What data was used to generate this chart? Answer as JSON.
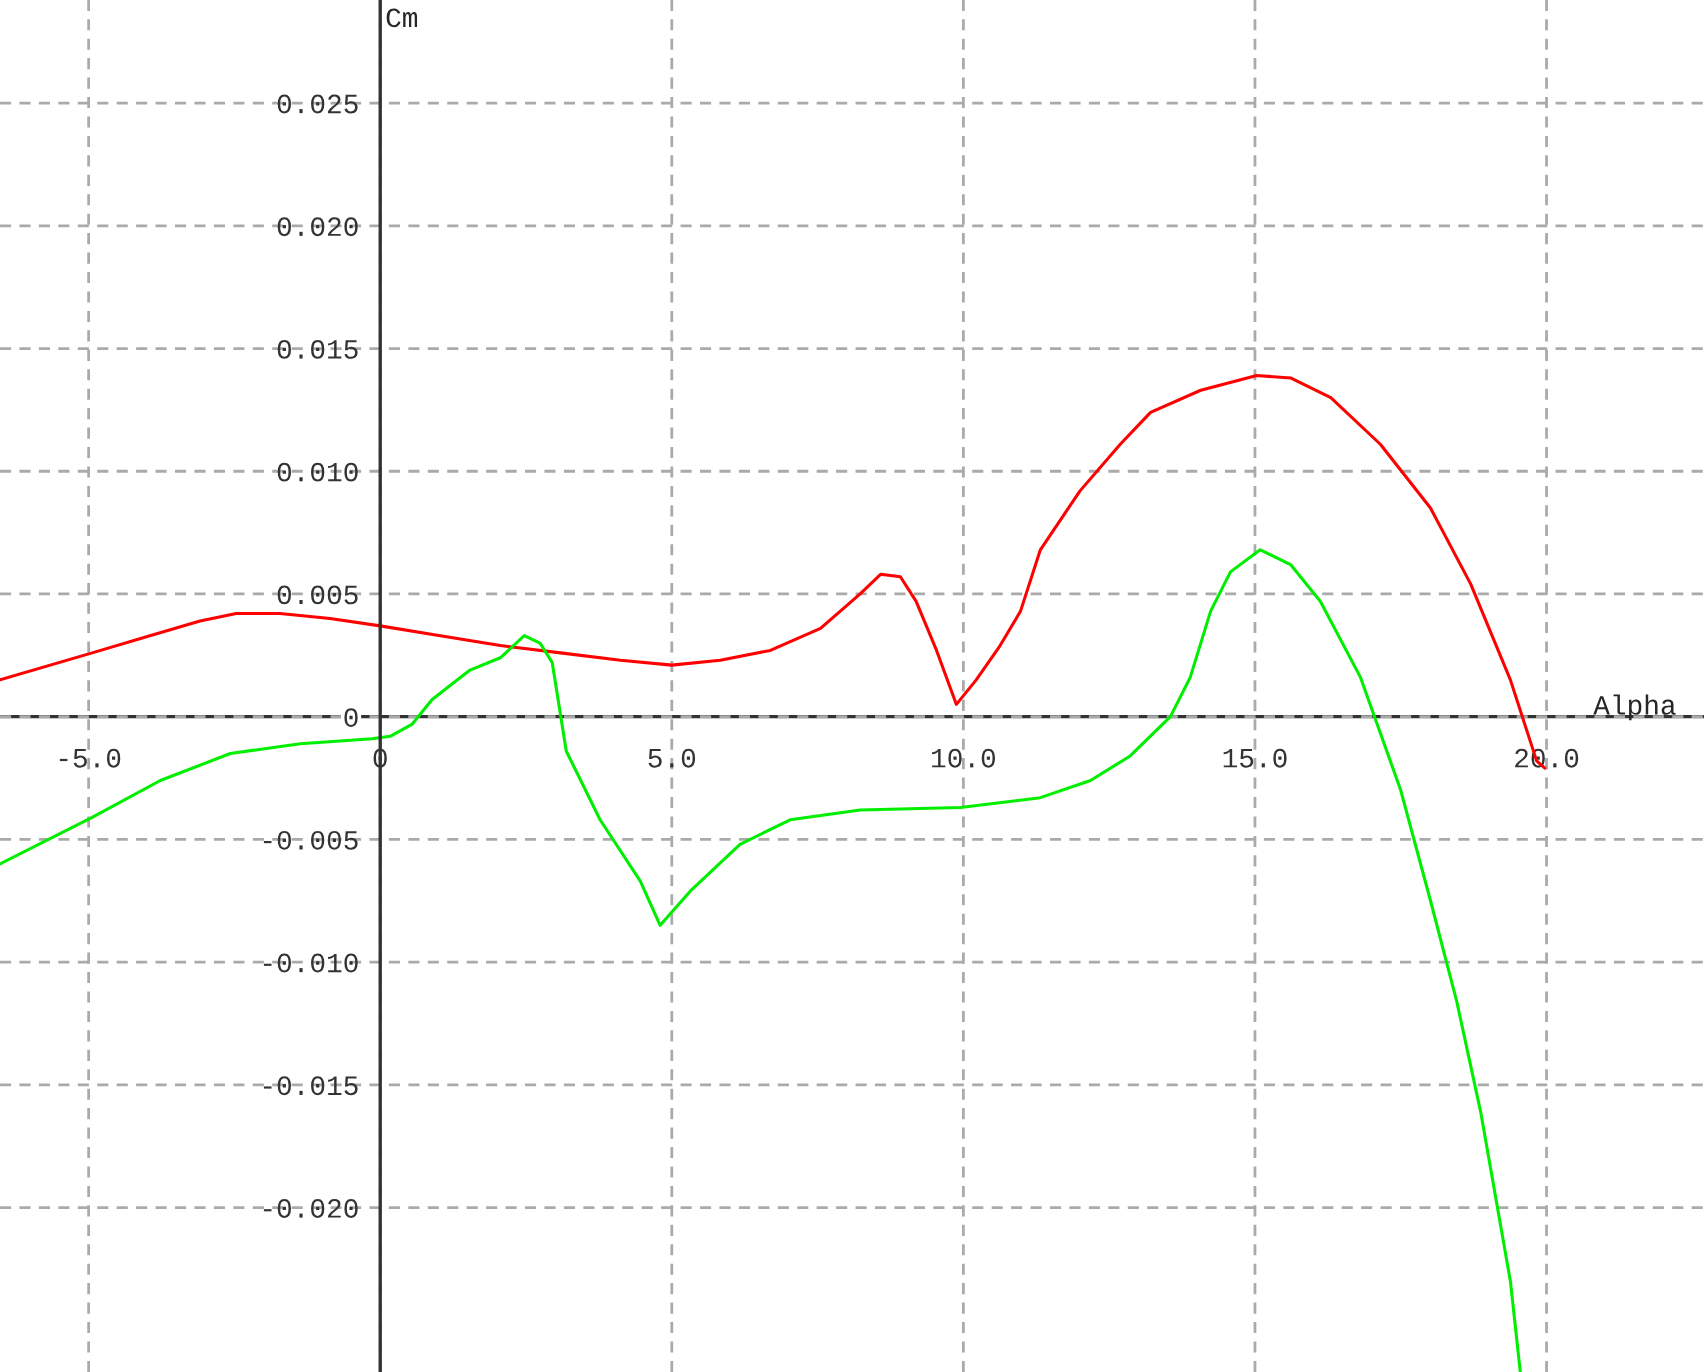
{
  "chart_data": {
    "type": "line",
    "xlabel": "Alpha",
    "ylabel": "Cm",
    "grid": true,
    "legend": false,
    "marker": "none",
    "line_style": "solid",
    "xlim": [
      -6.52,
      22.7
    ],
    "ylim": [
      -0.0267,
      0.0292
    ],
    "xticks": [
      {
        "value": -5,
        "label": "-5.0"
      },
      {
        "value": 0,
        "label": "0"
      },
      {
        "value": 5,
        "label": "5.0"
      },
      {
        "value": 10,
        "label": "10.0"
      },
      {
        "value": 15,
        "label": "15.0"
      },
      {
        "value": 20,
        "label": "20.0"
      }
    ],
    "yticks": [
      {
        "value": -0.02,
        "label": "-0.020"
      },
      {
        "value": -0.015,
        "label": "-0.015"
      },
      {
        "value": -0.01,
        "label": "-0.010"
      },
      {
        "value": -0.005,
        "label": "-0.005"
      },
      {
        "value": 0,
        "label": "0"
      },
      {
        "value": 0.005,
        "label": "0.005"
      },
      {
        "value": 0.01,
        "label": "0.010"
      },
      {
        "value": 0.015,
        "label": "0.015"
      },
      {
        "value": 0.02,
        "label": "0.020"
      },
      {
        "value": 0.025,
        "label": "0.025"
      }
    ],
    "series": [
      {
        "color": "#ff0000",
        "x": [
          -6.52,
          -4.94,
          -3.95,
          -3.09,
          -2.47,
          -1.72,
          -0.86,
          0,
          1.03,
          2.06,
          3.09,
          4.12,
          5.0,
          5.83,
          6.69,
          7.55,
          8.23,
          8.58,
          8.92,
          9.19,
          9.54,
          9.88,
          10.22,
          10.63,
          10.98,
          11.32,
          12.0,
          12.69,
          13.21,
          14.07,
          15.03,
          15.61,
          16.3,
          17.15,
          18.01,
          18.7,
          19.38,
          19.83,
          19.97
        ],
        "values": [
          0.0015,
          0.0026,
          0.0033,
          0.0039,
          0.0042,
          0.0042,
          0.004,
          0.0037,
          0.0033,
          0.0029,
          0.0026,
          0.0023,
          0.0021,
          0.0023,
          0.0027,
          0.0036,
          0.005,
          0.0058,
          0.0057,
          0.0047,
          0.0027,
          0.0005,
          0.0015,
          0.0029,
          0.0043,
          0.0068,
          0.0092,
          0.0111,
          0.0124,
          0.0133,
          0.0139,
          0.0138,
          0.013,
          0.0111,
          0.0085,
          0.0054,
          0.0015,
          -0.0018,
          -0.0021
        ]
      },
      {
        "color": "#00ee00",
        "x": [
          -6.52,
          -4.94,
          -3.77,
          -2.57,
          -1.37,
          -0.14,
          0.17,
          0.55,
          0.89,
          1.54,
          2.06,
          2.47,
          2.74,
          2.95,
          3.19,
          3.77,
          4.46,
          4.8,
          5.32,
          6.17,
          7.03,
          8.23,
          9.95,
          11.32,
          12.18,
          12.86,
          13.55,
          13.89,
          14.24,
          14.58,
          15.09,
          15.61,
          16.12,
          16.81,
          17.5,
          18.01,
          18.46,
          18.87,
          19.38,
          19.55
        ],
        "values": [
          -0.006,
          -0.0041,
          -0.0026,
          -0.0015,
          -0.0011,
          -0.0009,
          -0.0008,
          -0.0003,
          0.0007,
          0.0019,
          0.0024,
          0.0033,
          0.003,
          0.0022,
          -0.0014,
          -0.0042,
          -0.0067,
          -0.0085,
          -0.0071,
          -0.0052,
          -0.0042,
          -0.0038,
          -0.0037,
          -0.0033,
          -0.0026,
          -0.0016,
          0.0,
          0.0016,
          0.0043,
          0.0059,
          0.0068,
          0.0062,
          0.0047,
          0.0016,
          -0.003,
          -0.0075,
          -0.0116,
          -0.0161,
          -0.023,
          -0.0267
        ]
      }
    ]
  }
}
